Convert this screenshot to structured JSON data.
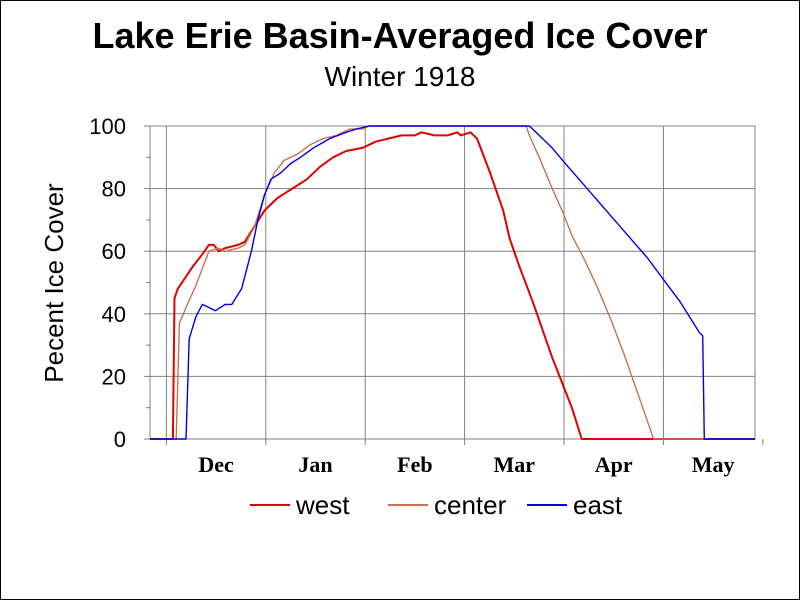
{
  "chart_data": {
    "type": "line",
    "title": "Lake Erie Basin-Averaged Ice Cover",
    "subtitle": "Winter 1918",
    "ylabel": "Pecent Ice Cover",
    "xlabel": "",
    "ylim": [
      0,
      100
    ],
    "yticks": [
      "0",
      "20",
      "40",
      "60",
      "80",
      "100"
    ],
    "xticks": [
      "Dec",
      "Jan",
      "Feb",
      "Mar",
      "Apr",
      "May"
    ],
    "x_range_days": [
      -5,
      180
    ],
    "grid": true,
    "legend_position": "bottom",
    "series": [
      {
        "name": "west",
        "color": "#e00000",
        "points": [
          [
            -5,
            0
          ],
          [
            2,
            0
          ],
          [
            2.5,
            45
          ],
          [
            3.5,
            48
          ],
          [
            8,
            55
          ],
          [
            11,
            59
          ],
          [
            13,
            62
          ],
          [
            14.5,
            62
          ],
          [
            16,
            60
          ],
          [
            18,
            61
          ],
          [
            22,
            62
          ],
          [
            24,
            63
          ],
          [
            27,
            68
          ],
          [
            30,
            73
          ],
          [
            34,
            77
          ],
          [
            37,
            79
          ],
          [
            40,
            81
          ],
          [
            43,
            83
          ],
          [
            47,
            87
          ],
          [
            51,
            90
          ],
          [
            55,
            92
          ],
          [
            60,
            93
          ],
          [
            64,
            95
          ],
          [
            68,
            96
          ],
          [
            72,
            97
          ],
          [
            76,
            97
          ],
          [
            78,
            98
          ],
          [
            82,
            97
          ],
          [
            86,
            97
          ],
          [
            89,
            98
          ],
          [
            90,
            97
          ],
          [
            93,
            98
          ],
          [
            95,
            96
          ],
          [
            99,
            85
          ],
          [
            103,
            73
          ],
          [
            105,
            64
          ],
          [
            108,
            55
          ],
          [
            112,
            44
          ],
          [
            118,
            26
          ],
          [
            124,
            10
          ],
          [
            127,
            0
          ],
          [
            180,
            0
          ]
        ]
      },
      {
        "name": "center",
        "color": "#c87050",
        "points": [
          [
            -5,
            0
          ],
          [
            3,
            0
          ],
          [
            4,
            37
          ],
          [
            6,
            42
          ],
          [
            9,
            49
          ],
          [
            13,
            60
          ],
          [
            16,
            61
          ],
          [
            18,
            60
          ],
          [
            22,
            61
          ],
          [
            24,
            62
          ],
          [
            27,
            68
          ],
          [
            30,
            78
          ],
          [
            33,
            85
          ],
          [
            36,
            89
          ],
          [
            40,
            91
          ],
          [
            44,
            94
          ],
          [
            48,
            96
          ],
          [
            52,
            97
          ],
          [
            56,
            99
          ],
          [
            60,
            99
          ],
          [
            62,
            100
          ],
          [
            110,
            100
          ],
          [
            111,
            97
          ],
          [
            114,
            90
          ],
          [
            118,
            80
          ],
          [
            121,
            73
          ],
          [
            124,
            65
          ],
          [
            128,
            57
          ],
          [
            132,
            48
          ],
          [
            136,
            38
          ],
          [
            140,
            27
          ],
          [
            144,
            15
          ],
          [
            147,
            6
          ],
          [
            149,
            0
          ],
          [
            180,
            0
          ]
        ]
      },
      {
        "name": "east",
        "color": "#0000e0",
        "points": [
          [
            -5,
            0
          ],
          [
            6,
            0
          ],
          [
            7,
            32
          ],
          [
            9,
            39
          ],
          [
            11,
            43
          ],
          [
            13,
            42
          ],
          [
            15,
            41
          ],
          [
            18,
            43
          ],
          [
            20,
            43
          ],
          [
            23,
            48
          ],
          [
            26,
            60
          ],
          [
            28,
            70
          ],
          [
            30,
            78
          ],
          [
            32,
            83
          ],
          [
            35,
            85
          ],
          [
            38,
            88
          ],
          [
            41,
            90
          ],
          [
            45,
            93
          ],
          [
            50,
            96
          ],
          [
            55,
            98
          ],
          [
            58,
            99
          ],
          [
            62,
            100
          ],
          [
            111,
            100
          ],
          [
            114,
            97
          ],
          [
            118,
            93
          ],
          [
            122,
            88
          ],
          [
            127,
            82
          ],
          [
            132,
            76
          ],
          [
            137,
            70
          ],
          [
            142,
            64
          ],
          [
            147,
            58
          ],
          [
            152,
            51
          ],
          [
            157,
            44
          ],
          [
            160,
            39
          ],
          [
            163,
            34
          ],
          [
            164,
            33
          ],
          [
            164.5,
            0
          ],
          [
            180,
            0
          ]
        ]
      }
    ]
  }
}
